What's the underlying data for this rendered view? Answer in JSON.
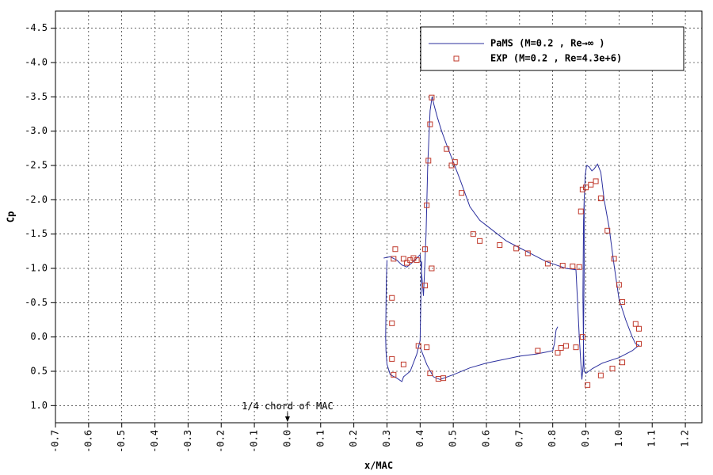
{
  "chart_data": {
    "type": "scatter",
    "xlabel": "x/MAC",
    "ylabel": "Cp",
    "xlim": [
      -0.7,
      1.25
    ],
    "ylim": [
      1.25,
      -4.75
    ],
    "y_axis_inverted": true,
    "grid": true,
    "legend_position": "top-right",
    "x_ticks": [
      "-0.7",
      "-0.6",
      "-0.5",
      "-0.4",
      "-0.3",
      "-0.2",
      "-0.1",
      "0.0",
      "0.1",
      "0.2",
      "0.3",
      "0.4",
      "0.5",
      "0.6",
      "0.7",
      "0.8",
      "0.9",
      "1.0",
      "1.1",
      "1.2"
    ],
    "y_ticks": [
      "-4.5",
      "-4.0",
      "-3.5",
      "-3.0",
      "-2.5",
      "-2.0",
      "-1.5",
      "-1.0",
      "-0.5",
      "0.0",
      "0.5",
      "1.0"
    ],
    "annotation": {
      "text": "1/4 chord of MAC",
      "x": 0.0,
      "y": 1.1
    },
    "series": [
      {
        "name": "PaMS (M=0.2 , Re→∞    )",
        "kind": "line",
        "color": "#2b2f9e",
        "segments": [
          [
            [
              0.29,
              -1.15
            ],
            [
              0.31,
              -1.17
            ],
            [
              0.33,
              -1.12
            ],
            [
              0.345,
              -1.05
            ],
            [
              0.36,
              -1.02
            ],
            [
              0.375,
              -1.08
            ],
            [
              0.39,
              -1.15
            ],
            [
              0.4,
              -1.2
            ],
            [
              0.405,
              -0.9
            ],
            [
              0.41,
              -0.6
            ],
            [
              0.413,
              -0.9
            ],
            [
              0.418,
              -1.5
            ],
            [
              0.423,
              -2.5
            ],
            [
              0.43,
              -3.3
            ],
            [
              0.436,
              -3.5
            ],
            [
              0.442,
              -3.38
            ],
            [
              0.452,
              -3.2
            ],
            [
              0.465,
              -3.0
            ],
            [
              0.48,
              -2.8
            ],
            [
              0.5,
              -2.55
            ],
            [
              0.52,
              -2.3
            ],
            [
              0.55,
              -1.9
            ],
            [
              0.58,
              -1.7
            ],
            [
              0.62,
              -1.55
            ],
            [
              0.66,
              -1.4
            ],
            [
              0.7,
              -1.3
            ],
            [
              0.74,
              -1.2
            ],
            [
              0.78,
              -1.1
            ],
            [
              0.81,
              -1.05
            ],
            [
              0.84,
              -1.0
            ],
            [
              0.87,
              -0.98
            ],
            [
              0.875,
              -0.5
            ],
            [
              0.88,
              0.0
            ],
            [
              0.885,
              0.4
            ],
            [
              0.888,
              0.62
            ],
            [
              0.892,
              0.4
            ],
            [
              0.895,
              -1.0
            ],
            [
              0.895,
              -2.0
            ],
            [
              0.898,
              -2.35
            ],
            [
              0.902,
              -2.5
            ],
            [
              0.91,
              -2.48
            ],
            [
              0.918,
              -2.42
            ],
            [
              0.925,
              -2.45
            ],
            [
              0.935,
              -2.52
            ],
            [
              0.945,
              -2.4
            ],
            [
              0.955,
              -2.0
            ],
            [
              0.97,
              -1.6
            ],
            [
              0.985,
              -1.05
            ],
            [
              1.0,
              -0.55
            ],
            [
              1.02,
              -0.25
            ],
            [
              1.04,
              0.0
            ],
            [
              1.05,
              0.1
            ],
            [
              1.06,
              0.12
            ],
            [
              1.04,
              0.2
            ],
            [
              1.0,
              0.3
            ],
            [
              0.95,
              0.38
            ],
            [
              0.92,
              0.46
            ],
            [
              0.9,
              0.53
            ],
            [
              0.895,
              0.5
            ],
            [
              0.893,
              0.2
            ],
            [
              0.891,
              -0.6
            ],
            [
              0.893,
              -1.7
            ],
            [
              0.895,
              -2.0
            ]
          ],
          [
            [
              0.3,
              -1.12
            ],
            [
              0.298,
              -0.8
            ],
            [
              0.297,
              -0.4
            ],
            [
              0.296,
              0.0
            ],
            [
              0.297,
              0.2
            ],
            [
              0.3,
              0.4
            ],
            [
              0.31,
              0.55
            ],
            [
              0.33,
              0.6
            ],
            [
              0.345,
              0.65
            ],
            [
              0.35,
              0.58
            ],
            [
              0.37,
              0.5
            ],
            [
              0.39,
              0.25
            ],
            [
              0.4,
              0.05
            ],
            [
              0.403,
              -0.8
            ],
            [
              0.405,
              -1.1
            ]
          ],
          [
            [
              0.4,
              0.15
            ],
            [
              0.42,
              0.4
            ],
            [
              0.44,
              0.58
            ],
            [
              0.46,
              0.62
            ],
            [
              0.5,
              0.55
            ],
            [
              0.55,
              0.45
            ],
            [
              0.6,
              0.38
            ],
            [
              0.65,
              0.33
            ],
            [
              0.7,
              0.28
            ],
            [
              0.75,
              0.25
            ],
            [
              0.78,
              0.22
            ],
            [
              0.8,
              0.2
            ],
            [
              0.805,
              0.1
            ],
            [
              0.81,
              -0.1
            ],
            [
              0.815,
              -0.15
            ]
          ]
        ]
      },
      {
        "name": "EXP  (M=0.2 , Re=4.3e+6)",
        "kind": "markers",
        "marker": "square",
        "color": "#c0392b",
        "points": [
          [
            0.435,
            -3.49
          ],
          [
            0.43,
            -3.1
          ],
          [
            0.425,
            -2.57
          ],
          [
            0.42,
            -1.92
          ],
          [
            0.415,
            -1.28
          ],
          [
            0.415,
            -0.75
          ],
          [
            0.42,
            0.15
          ],
          [
            0.435,
            -1.0
          ],
          [
            0.48,
            -2.74
          ],
          [
            0.495,
            -2.5
          ],
          [
            0.505,
            -2.55
          ],
          [
            0.525,
            -2.1
          ],
          [
            0.56,
            -1.5
          ],
          [
            0.58,
            -1.4
          ],
          [
            0.64,
            -1.34
          ],
          [
            0.69,
            -1.29
          ],
          [
            0.725,
            -1.22
          ],
          [
            0.785,
            -1.07
          ],
          [
            0.83,
            -1.04
          ],
          [
            0.86,
            -1.03
          ],
          [
            0.88,
            -1.02
          ],
          [
            0.885,
            -1.83
          ],
          [
            0.89,
            -2.15
          ],
          [
            0.9,
            -2.18
          ],
          [
            0.915,
            -2.22
          ],
          [
            0.93,
            -2.27
          ],
          [
            0.945,
            -2.02
          ],
          [
            0.965,
            -1.55
          ],
          [
            0.985,
            -1.14
          ],
          [
            1.0,
            -0.76
          ],
          [
            1.01,
            -0.51
          ],
          [
            1.05,
            -0.19
          ],
          [
            1.06,
            -0.12
          ],
          [
            1.06,
            0.1
          ],
          [
            1.01,
            0.37
          ],
          [
            0.98,
            0.46
          ],
          [
            0.945,
            0.56
          ],
          [
            0.905,
            0.7
          ],
          [
            0.89,
            0.0
          ],
          [
            0.87,
            0.15
          ],
          [
            0.84,
            0.13
          ],
          [
            0.825,
            0.16
          ],
          [
            0.815,
            0.23
          ],
          [
            0.755,
            0.2
          ],
          [
            0.47,
            0.6
          ],
          [
            0.455,
            0.61
          ],
          [
            0.43,
            0.53
          ],
          [
            0.32,
            0.55
          ],
          [
            0.315,
            0.32
          ],
          [
            0.315,
            -0.2
          ],
          [
            0.315,
            -0.57
          ],
          [
            0.32,
            -1.14
          ],
          [
            0.325,
            -1.28
          ],
          [
            0.35,
            -1.14
          ],
          [
            0.36,
            -1.08
          ],
          [
            0.37,
            -1.12
          ],
          [
            0.38,
            -1.15
          ],
          [
            0.39,
            -1.12
          ],
          [
            0.395,
            0.13
          ],
          [
            0.35,
            0.4
          ]
        ]
      }
    ]
  }
}
